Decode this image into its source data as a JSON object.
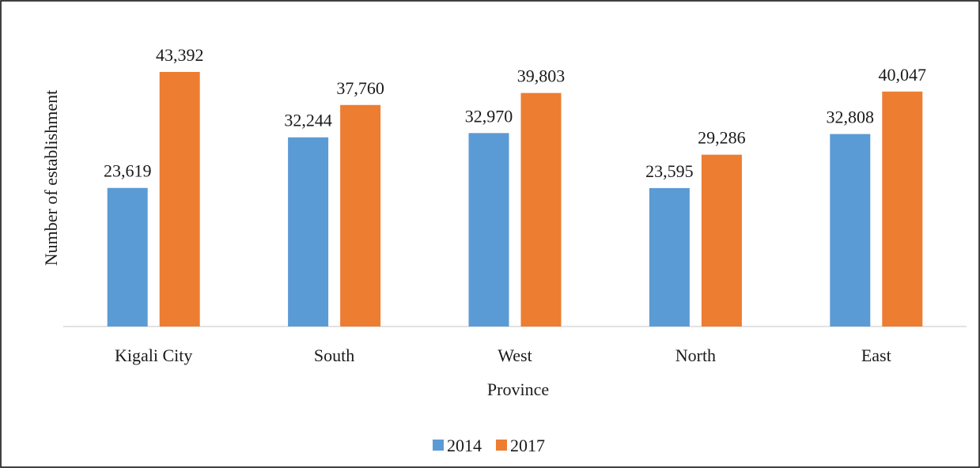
{
  "chart_data": {
    "type": "bar",
    "x_label": "Province",
    "y_label": "Number of establishment",
    "categories": [
      "Kigali City",
      "South",
      "West",
      "North",
      "East"
    ],
    "series": [
      {
        "name": "2014",
        "color": "#5b9bd5",
        "values": [
          23619,
          32244,
          32970,
          23595,
          32808
        ],
        "value_labels": [
          "23,619",
          "32,244",
          "32,970",
          "23,595",
          "32,808"
        ]
      },
      {
        "name": "2017",
        "color": "#ed7d31",
        "values": [
          43392,
          37760,
          39803,
          29286,
          40047
        ],
        "value_labels": [
          "43,392",
          "37,760",
          "39,803",
          "29,286",
          "40,047"
        ]
      }
    ],
    "legend": "bottom"
  }
}
